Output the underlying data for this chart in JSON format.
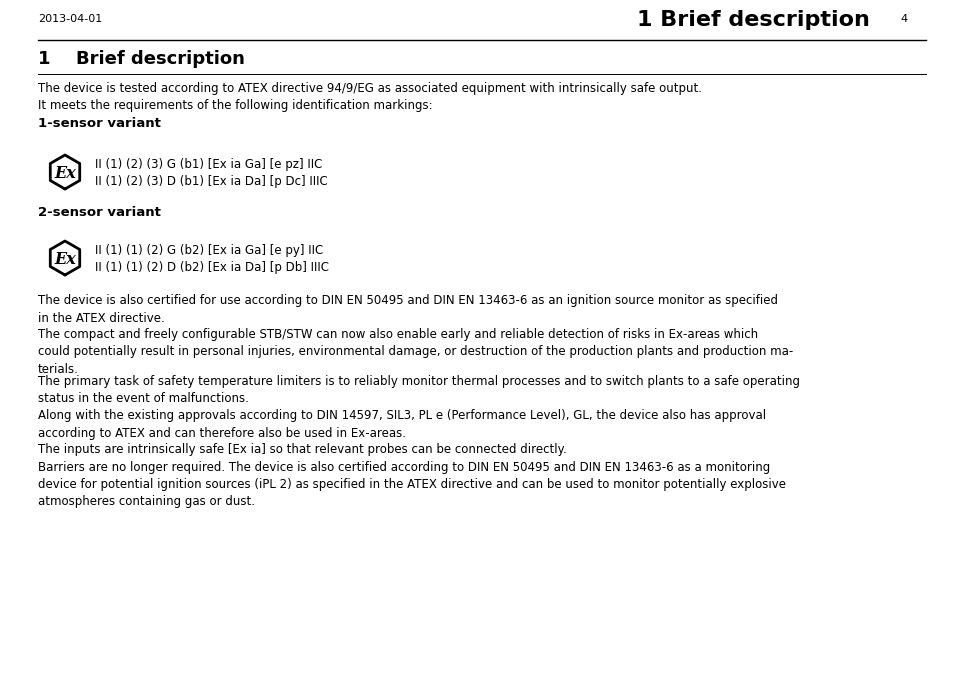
{
  "bg_color": "#ffffff",
  "header_date": "2013-04-01",
  "header_title": "1 Brief description",
  "header_page": "4",
  "section_number": "1",
  "section_title": "Brief description",
  "intro_text": "The device is tested according to ATEX directive 94/9/EG as associated equipment with intrinsically safe output.\nIt meets the requirements of the following identification markings:",
  "subsection1": "1-sensor variant",
  "sensor1_line1": "II (1) (2) (3) G (b1) [Ex ia Ga] [e pz] IIC",
  "sensor1_line2": "II (1) (2) (3) D (b1) [Ex ia Da] [p Dc] IIIC",
  "subsection2": "2-sensor variant",
  "sensor2_line1": "II (1) (1) (2) G (b2) [Ex ia Ga] [e py] IIC",
  "sensor2_line2": "II (1) (1) (2) D (b2) [Ex ia Da] [p Db] IIIC",
  "para1": "The device is also certified for use according to DIN EN 50495 and DIN EN 13463-6 as an ignition source monitor as specified\nin the ATEX directive.",
  "para2": "The compact and freely configurable STB/STW can now also enable early and reliable detection of risks in Ex-areas which\ncould potentially result in personal injuries, environmental damage, or destruction of the production plants and production ma-\nterials.",
  "para3": "The primary task of safety temperature limiters is to reliably monitor thermal processes and to switch plants to a safe operating\nstatus in the event of malfunctions.",
  "para4": "Along with the existing approvals according to DIN 14597, SIL3, PL e (Performance Level), GL, the device also has approval\naccording to ATEX and can therefore also be used in Ex-areas.",
  "para5": "The inputs are intrinsically safe [Ex ia] so that relevant probes can be connected directly.\nBarriers are no longer required. The device is also certified according to DIN EN 50495 and DIN EN 13463-6 as a monitoring\ndevice for potential ignition sources (iPL 2) as specified in the ATEX directive and can be used to monitor potentially explosive\natmospheres containing gas or dust.",
  "text_color": "#000000",
  "line_color": "#000000",
  "font_size_body": 8.5,
  "font_size_section": 13,
  "font_size_header_title": 16,
  "font_size_header_date": 8,
  "font_size_subsection": 9.5
}
